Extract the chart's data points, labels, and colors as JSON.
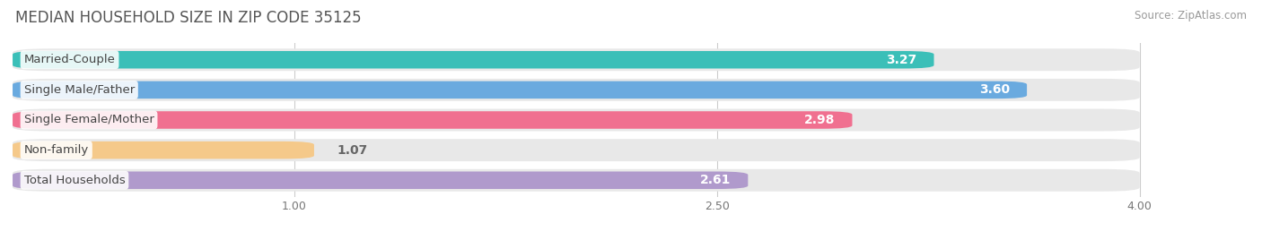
{
  "title": "MEDIAN HOUSEHOLD SIZE IN ZIP CODE 35125",
  "source": "Source: ZipAtlas.com",
  "categories": [
    "Married-Couple",
    "Single Male/Father",
    "Single Female/Mother",
    "Non-family",
    "Total Households"
  ],
  "values": [
    3.27,
    3.6,
    2.98,
    1.07,
    2.61
  ],
  "bar_colors": [
    "#3bbfb8",
    "#6aaadf",
    "#f07090",
    "#f5c98a",
    "#b09acc"
  ],
  "bar_bg_color": "#e8e8e8",
  "xlim": [
    0,
    4.3
  ],
  "xdata_max": 4.0,
  "xticks": [
    1.0,
    2.5,
    4.0
  ],
  "title_fontsize": 12,
  "source_fontsize": 8.5,
  "bar_label_fontsize": 10,
  "category_fontsize": 9.5,
  "figsize": [
    14.06,
    2.68
  ],
  "dpi": 100,
  "background_color": "#ffffff"
}
